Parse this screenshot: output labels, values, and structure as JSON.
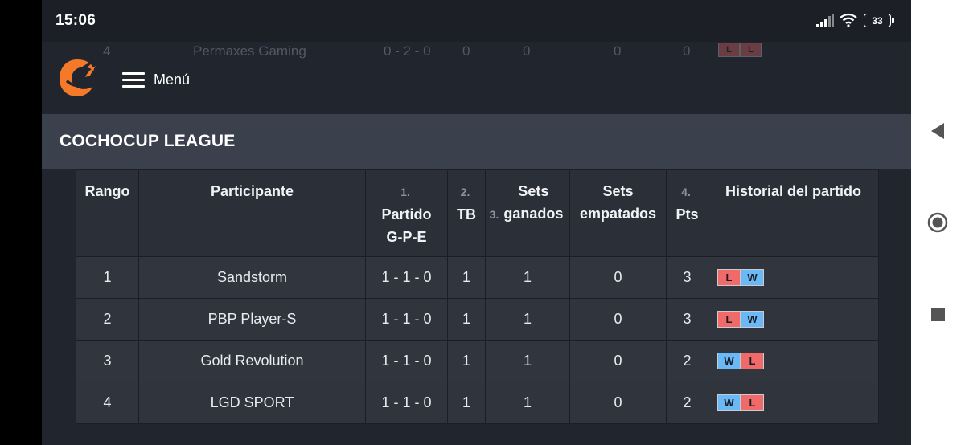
{
  "status_bar": {
    "time": "15:06",
    "battery": "33",
    "icons": [
      "signal-icon",
      "wifi-icon",
      "battery-icon"
    ]
  },
  "ghost_row": {
    "rank": "4",
    "name": "Permaxes Gaming",
    "record": "0 - 2 - 0",
    "tb": "0",
    "sets": "0",
    "ties": "0",
    "pts": "0",
    "history": [
      "L",
      "L"
    ]
  },
  "header": {
    "menu_label": "Menú",
    "logo": "brand-logo-icon"
  },
  "league": {
    "title": "COCHOCUP LEAGUE"
  },
  "table": {
    "columns": [
      {
        "num": "",
        "label": "Rango"
      },
      {
        "num": "",
        "label": "Participante"
      },
      {
        "num": "1.",
        "label": "Partido G-P-E"
      },
      {
        "num": "2.",
        "label": "TB"
      },
      {
        "num": "3.",
        "label": "Sets ganados"
      },
      {
        "num": "",
        "label": "Sets empatados"
      },
      {
        "num": "4.",
        "label": "Pts"
      },
      {
        "num": "",
        "label": "Historial del partido"
      }
    ],
    "rows": [
      {
        "rank": "1",
        "name": "Sandstorm",
        "record": "1 - 1 - 0",
        "tb": "1",
        "sets_won": "1",
        "sets_tied": "0",
        "pts": "3",
        "history": [
          "L",
          "W"
        ]
      },
      {
        "rank": "2",
        "name": "PBP Player-S",
        "record": "1 - 1 - 0",
        "tb": "1",
        "sets_won": "1",
        "sets_tied": "0",
        "pts": "3",
        "history": [
          "L",
          "W"
        ]
      },
      {
        "rank": "3",
        "name": "Gold Revolution",
        "record": "1 - 1 - 0",
        "tb": "1",
        "sets_won": "1",
        "sets_tied": "0",
        "pts": "2",
        "history": [
          "W",
          "L"
        ]
      },
      {
        "rank": "4",
        "name": "LGD SPORT",
        "record": "1 - 1 - 0",
        "tb": "1",
        "sets_won": "1",
        "sets_tied": "0",
        "pts": "2",
        "history": [
          "W",
          "L"
        ]
      }
    ]
  },
  "nav_bar": {
    "buttons": [
      "back-icon",
      "home-icon",
      "recents-icon"
    ]
  },
  "colors": {
    "loss": "#f06a6a",
    "win": "#6ab8f5",
    "accent": "#f47a2a",
    "background": "#21252d",
    "league_bar": "#3a404c"
  }
}
